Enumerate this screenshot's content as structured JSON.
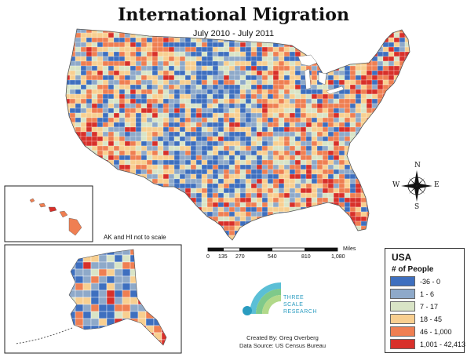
{
  "title": "International Migration",
  "subtitle": "July 2010 - July 2011",
  "inset_note": "AK and HI not to scale",
  "scale": {
    "unit": "Miles",
    "ticks": [
      "0",
      "135",
      "270",
      "540",
      "810",
      "1,080"
    ]
  },
  "legend": {
    "title": "USA",
    "subtitle": "# of People",
    "classes": [
      {
        "label": "-36 - 0",
        "color": "#3e6fbf"
      },
      {
        "label": "1 - 6",
        "color": "#8ea9c9"
      },
      {
        "label": "7 - 17",
        "color": "#d9e4c6"
      },
      {
        "label": "18 - 45",
        "color": "#f8cf90"
      },
      {
        "label": "46 - 1,000",
        "color": "#ef7f52"
      },
      {
        "label": "1,001 - 42,413",
        "color": "#d8302a"
      }
    ]
  },
  "compass": {
    "n": "N",
    "s": "S",
    "e": "E",
    "w": "W"
  },
  "logo": {
    "line1": "THREE",
    "line2": "SCALE",
    "line3": "RESEARCH"
  },
  "credits": {
    "created_by": "Created By: Greg Overberg",
    "source": "Data Source: US Census Bureau"
  }
}
